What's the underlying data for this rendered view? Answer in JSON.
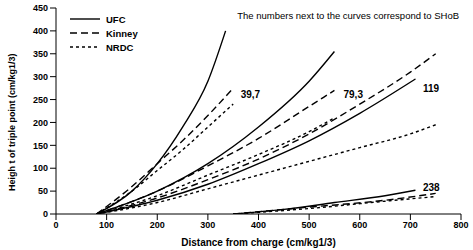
{
  "chart_data": {
    "type": "line",
    "note": "The numbers next to the curves correspond to SHoB",
    "x_label": "Distance from charge (cm/kg1/3)",
    "y_label": "Heigh t of triple point (cm/kg1/3)",
    "xlim": [
      0,
      800
    ],
    "xticks": [
      0,
      100,
      200,
      300,
      400,
      500,
      600,
      700,
      800
    ],
    "ylim": [
      0,
      450
    ],
    "yticks": [
      0,
      50,
      100,
      150,
      200,
      250,
      300,
      350,
      400,
      450
    ],
    "grid": false,
    "legend": "upper left",
    "series": [
      {
        "name": "UFC",
        "color": "#000000",
        "line_style": "solid",
        "x": [
          80,
          150,
          200,
          250,
          300,
          335
        ],
        "values": [
          0,
          50,
          110,
          190,
          290,
          400
        ]
      },
      {
        "name": "Kinney",
        "color": "#000000",
        "line_style": "dashed",
        "x": [
          80,
          150,
          200,
          250,
          300,
          350
        ],
        "values": [
          0,
          60,
          110,
          160,
          215,
          275
        ]
      },
      {
        "name": "NRDC",
        "color": "#000000",
        "line_style": "dotted",
        "x": [
          80,
          150,
          200,
          250,
          300,
          350
        ],
        "values": [
          0,
          50,
          95,
          140,
          190,
          240
        ]
      },
      {
        "name": "UFC",
        "color": "#000000",
        "line_style": "solid",
        "x": [
          80,
          200,
          300,
          400,
          500,
          550
        ],
        "values": [
          0,
          50,
          110,
          190,
          290,
          355
        ]
      },
      {
        "name": "Kinney",
        "color": "#000000",
        "line_style": "dashed",
        "x": [
          80,
          200,
          300,
          400,
          500,
          550
        ],
        "values": [
          0,
          50,
          105,
          165,
          235,
          270
        ]
      },
      {
        "name": "NRDC",
        "color": "#000000",
        "line_style": "dotted",
        "x": [
          80,
          200,
          300,
          400,
          500,
          550
        ],
        "values": [
          0,
          40,
          85,
          130,
          180,
          210
        ]
      },
      {
        "name": "UFC",
        "color": "#000000",
        "line_style": "solid",
        "x": [
          80,
          200,
          300,
          400,
          500,
          600,
          710
        ],
        "values": [
          0,
          30,
          65,
          110,
          160,
          220,
          295
        ]
      },
      {
        "name": "Kinney",
        "color": "#000000",
        "line_style": "dashed",
        "x": [
          80,
          200,
          300,
          400,
          500,
          600,
          700,
          750
        ],
        "values": [
          0,
          35,
          75,
          120,
          175,
          240,
          310,
          350
        ]
      },
      {
        "name": "NRDC",
        "color": "#000000",
        "line_style": "dotted",
        "x": [
          80,
          200,
          300,
          400,
          500,
          600,
          700,
          750
        ],
        "values": [
          0,
          25,
          55,
          85,
          115,
          145,
          175,
          195
        ]
      },
      {
        "name": "UFC",
        "color": "#000000",
        "line_style": "solid",
        "x": [
          350,
          450,
          550,
          650,
          710
        ],
        "values": [
          0,
          10,
          25,
          40,
          52
        ]
      },
      {
        "name": "Kinney",
        "color": "#000000",
        "line_style": "dashed",
        "x": [
          350,
          500,
          650,
          750
        ],
        "values": [
          0,
          15,
          30,
          45
        ]
      },
      {
        "name": "NRDC",
        "color": "#000000",
        "line_style": "dotted",
        "x": [
          350,
          500,
          650,
          750
        ],
        "values": [
          0,
          12,
          28,
          38
        ]
      }
    ],
    "annotations": [
      {
        "text": "39,7",
        "x": 355,
        "y": 262
      },
      {
        "text": "79,3",
        "x": 558,
        "y": 262
      },
      {
        "text": "119",
        "x": 715,
        "y": 275
      },
      {
        "text": "238",
        "x": 715,
        "y": 58
      }
    ]
  }
}
